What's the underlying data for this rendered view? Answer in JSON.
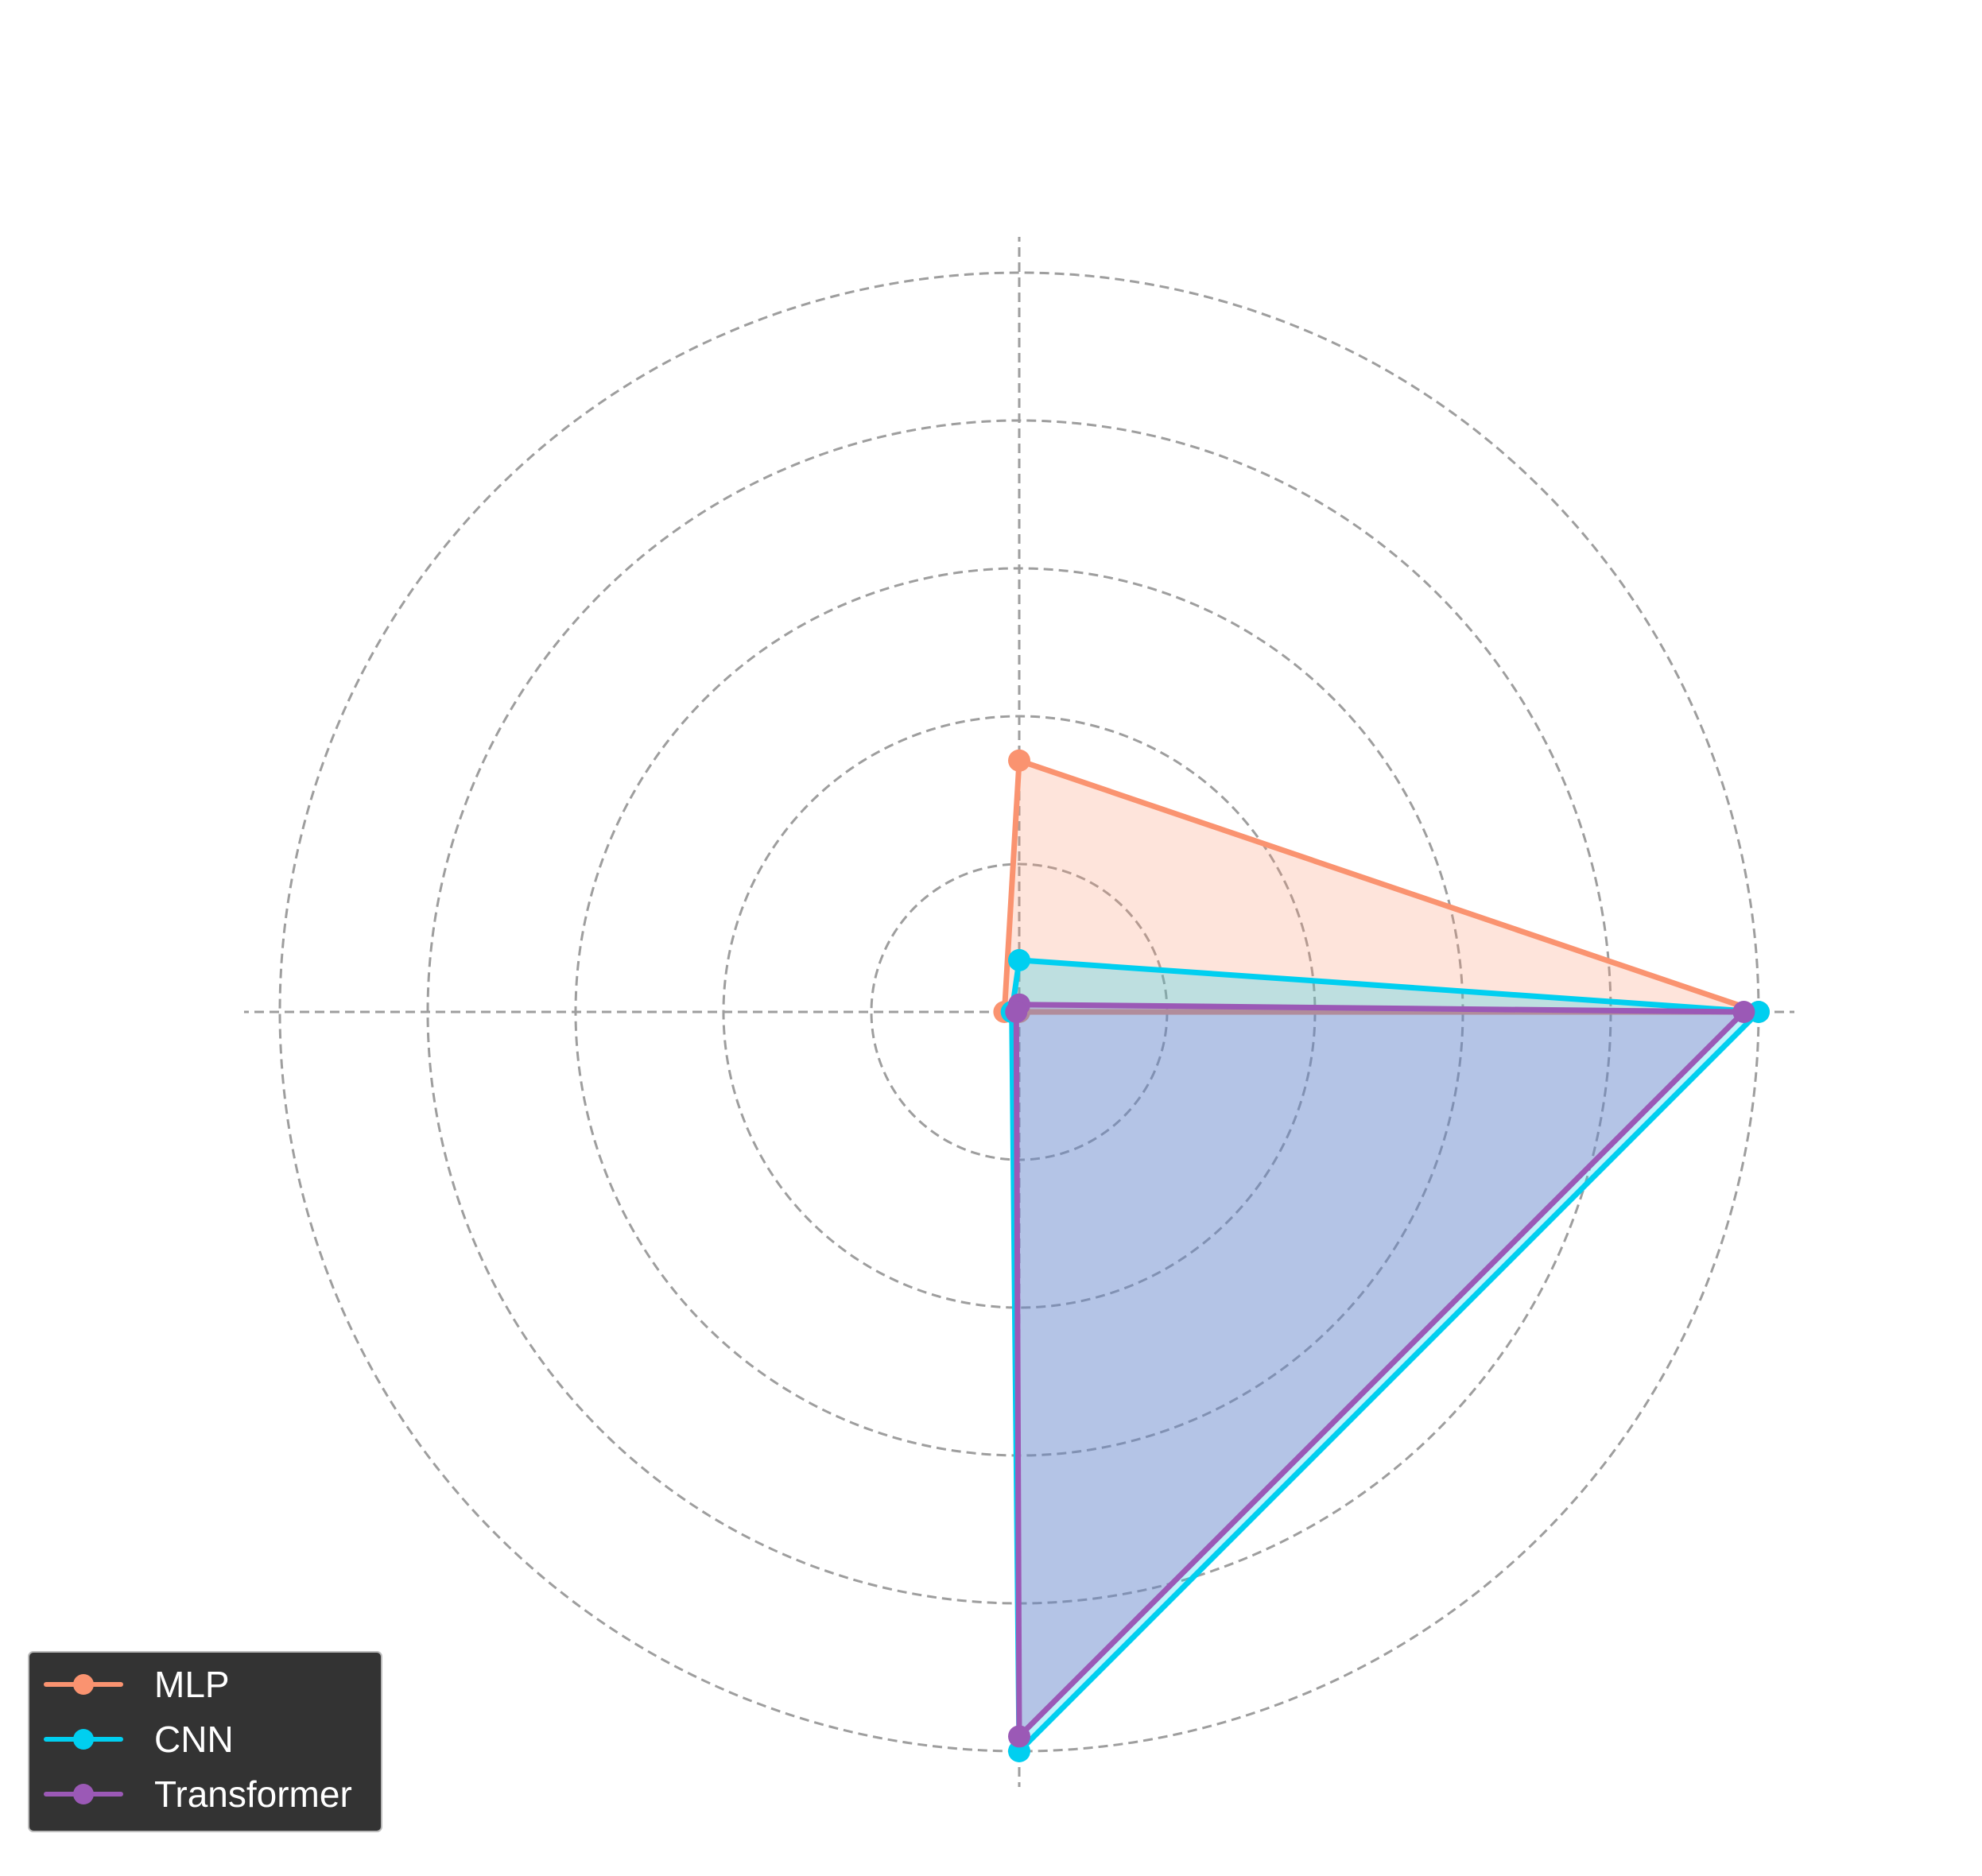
{
  "chart_data": {
    "type": "radar",
    "axes_count": 4,
    "rmax": 5,
    "rings": [
      1,
      2,
      3,
      4,
      5
    ],
    "grid": true,
    "grid_style": "dashed",
    "legend_position": "lower-left",
    "series": [
      {
        "name": "MLP",
        "color": "#FA9370",
        "values": [
          1.7,
          0.1,
          0.0,
          5.0
        ]
      },
      {
        "name": "CNN",
        "color": "#00CFF0",
        "values": [
          0.35,
          0.05,
          5.0,
          5.0
        ]
      },
      {
        "name": "Transformer",
        "color": "#9B59B6",
        "values": [
          0.05,
          0.02,
          4.9,
          4.9
        ]
      }
    ]
  },
  "legend": {
    "items": [
      {
        "label": "MLP",
        "color": "#FA9370"
      },
      {
        "label": "CNN",
        "color": "#00CFF0"
      },
      {
        "label": "Transformer",
        "color": "#9B59B6"
      }
    ]
  }
}
